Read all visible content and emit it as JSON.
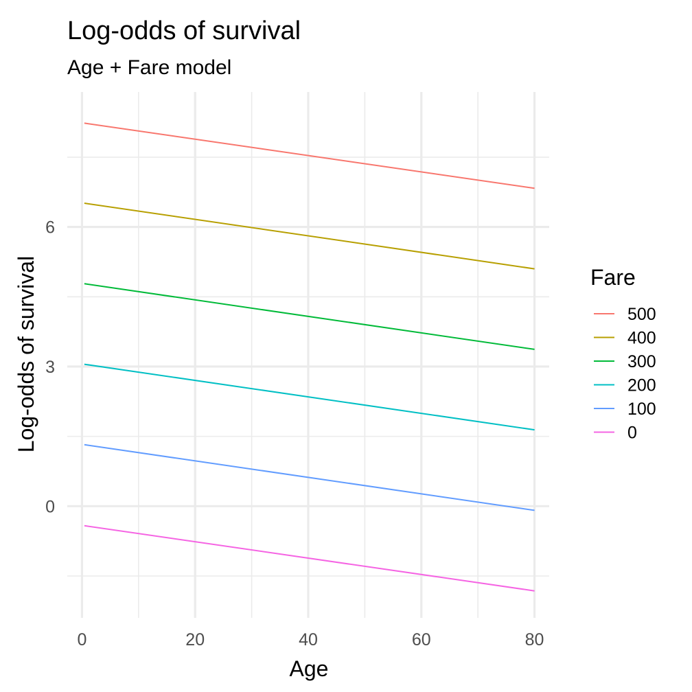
{
  "chart_data": {
    "type": "line",
    "title": "Log-odds of survival",
    "subtitle": "Age + Fare model",
    "xlabel": "Age",
    "ylabel": "Log-odds of survival",
    "xlim": [
      -2.6,
      82.6
    ],
    "ylim": [
      -2.4,
      8.9
    ],
    "x_ticks": [
      0,
      20,
      40,
      60,
      80
    ],
    "x_tick_labels": [
      "0",
      "20",
      "40",
      "60",
      "80"
    ],
    "y_ticks": [
      0,
      3,
      6
    ],
    "y_tick_labels": [
      "0",
      "3",
      "6"
    ],
    "x_minor_ticks": [
      10,
      30,
      50,
      70
    ],
    "y_minor_ticks": [
      -1.5,
      1.5,
      4.5,
      7.5
    ],
    "grid": true,
    "legend": {
      "title": "Fare",
      "position": "right"
    },
    "series": [
      {
        "name": "500",
        "color": "#F8766D",
        "x": [
          0.42,
          80
        ],
        "y": [
          8.23,
          6.83
        ]
      },
      {
        "name": "400",
        "color": "#B79F00",
        "x": [
          0.42,
          80
        ],
        "y": [
          6.51,
          5.1
        ]
      },
      {
        "name": "300",
        "color": "#00BA38",
        "x": [
          0.42,
          80
        ],
        "y": [
          4.78,
          3.37
        ]
      },
      {
        "name": "200",
        "color": "#00BFC4",
        "x": [
          0.42,
          80
        ],
        "y": [
          3.05,
          1.64
        ]
      },
      {
        "name": "100",
        "color": "#619CFF",
        "x": [
          0.42,
          80
        ],
        "y": [
          1.32,
          -0.09
        ]
      },
      {
        "name": "0",
        "color": "#F564E3",
        "x": [
          0.42,
          80
        ],
        "y": [
          -0.42,
          -1.82
        ]
      }
    ]
  }
}
